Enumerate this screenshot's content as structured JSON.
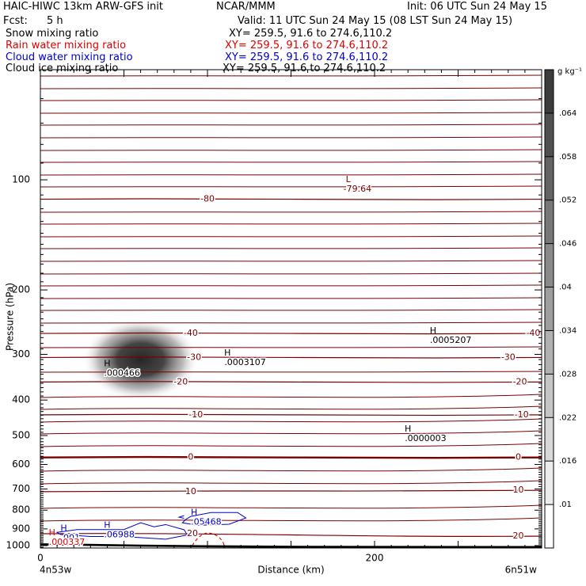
{
  "header": {
    "title": "HAIC-HIWC 13km ARW-GFS init",
    "org": "NCAR/MMM",
    "init": "Init: 06 UTC Sun 24 May 15",
    "fcst_label": "Fcst:",
    "fcst_value": "5 h",
    "valid": "Valid: 11 UTC Sun 24 May 15 (08 LST Sun 24 May 15)",
    "fields": [
      {
        "name": "Snow mixing ratio",
        "xy": "XY= 259.5, 91.6 to 274.6,110.2",
        "color": "#000000"
      },
      {
        "name": "Rain water mixing ratio",
        "xy": "XY= 259.5, 91.6 to 274.6,110.2",
        "color": "#e00000"
      },
      {
        "name": "Cloud water mixing ratio",
        "xy": "XY= 259.5, 91.6 to 274.6,110.2",
        "color": "#0000cc"
      },
      {
        "name": "Cloud ice mixing ratio",
        "xy": "XY= 259.5, 91.6 to 274.6,110.2",
        "color": "#000000"
      }
    ]
  },
  "chart_data": {
    "type": "cross-section",
    "xlabel": "Distance (km)",
    "ylabel": "Pressure (hPa)",
    "x_range_km": [
      0,
      300
    ],
    "y_range_hpa": [
      50,
      1015
    ],
    "y_scale": "log",
    "x_ticks": [
      {
        "value": 0,
        "label": "0"
      },
      {
        "value": 200,
        "label": "200"
      }
    ],
    "y_ticks": [
      100,
      200,
      300,
      400,
      500,
      600,
      700,
      800,
      900,
      1000
    ],
    "x_end_labels": {
      "left": "4n53w",
      "right": "6n51w"
    },
    "temperature_contours": {
      "color": "#7a0000",
      "interval": 5,
      "labeled": [
        {
          "value": -80,
          "label": "-80",
          "x_km": 100,
          "p_hpa": 113
        },
        {
          "value": -40,
          "label": "-40",
          "x_km": 90,
          "p_hpa": 263
        },
        {
          "value": -40,
          "label": "-40",
          "x_km": 295,
          "p_hpa": 263
        },
        {
          "value": -30,
          "label": "-30",
          "x_km": 92,
          "p_hpa": 306
        },
        {
          "value": -30,
          "label": "-30",
          "x_km": 280,
          "p_hpa": 306
        },
        {
          "value": -20,
          "label": "-20",
          "x_km": 84,
          "p_hpa": 357
        },
        {
          "value": -20,
          "label": "-20",
          "x_km": 287,
          "p_hpa": 357
        },
        {
          "value": -10,
          "label": "-10",
          "x_km": 93,
          "p_hpa": 439
        },
        {
          "value": -10,
          "label": "-10",
          "x_km": 288,
          "p_hpa": 439
        },
        {
          "value": 0,
          "label": "0",
          "x_km": 90,
          "p_hpa": 574
        },
        {
          "value": 0,
          "label": "0",
          "x_km": 286,
          "p_hpa": 574
        },
        {
          "value": 10,
          "label": "10",
          "x_km": 90,
          "p_hpa": 712
        },
        {
          "value": 10,
          "label": "10",
          "x_km": 286,
          "p_hpa": 706
        },
        {
          "value": 20,
          "label": "20",
          "x_km": 91,
          "p_hpa": 928
        },
        {
          "value": 20,
          "label": "20",
          "x_km": 286,
          "p_hpa": 942
        }
      ]
    },
    "extrema": [
      {
        "kind": "L",
        "value": "-79.64",
        "x_km": 188,
        "p_hpa": 105,
        "color": "#7a0000"
      },
      {
        "kind": "H",
        "value": ".000466",
        "x_km": 40,
        "p_hpa": 335,
        "color": "#000000"
      },
      {
        "kind": "H",
        "value": ".0003107",
        "x_km": 112,
        "p_hpa": 313,
        "color": "#000000"
      },
      {
        "kind": "H",
        "value": ".0005207",
        "x_km": 235,
        "p_hpa": 272,
        "color": "#000000"
      },
      {
        "kind": "H",
        "value": ".0000003",
        "x_km": 220,
        "p_hpa": 505,
        "color": "#000000"
      },
      {
        "kind": "H",
        "value": ".05468",
        "x_km": 92,
        "p_hpa": 855,
        "color": "#0000cc"
      },
      {
        "kind": "H",
        "value": ".06988",
        "x_km": 40,
        "p_hpa": 925,
        "color": "#0000cc"
      },
      {
        "kind": "H",
        "value": ".001",
        "x_km": 14,
        "p_hpa": 945,
        "color": "#0000cc"
      },
      {
        "kind": "H",
        "value": ".000337",
        "x_km": 7,
        "p_hpa": 970,
        "color": "#e00000"
      }
    ],
    "snow_maximum": {
      "x_km": 60,
      "p_hpa": 310,
      "value": 0.000466
    },
    "colorbar": {
      "units": "g kg⁻¹",
      "levels": [
        ".064",
        ".058",
        ".052",
        ".046",
        ".04",
        ".034",
        ".028",
        ".022",
        ".016",
        ".01"
      ]
    }
  }
}
